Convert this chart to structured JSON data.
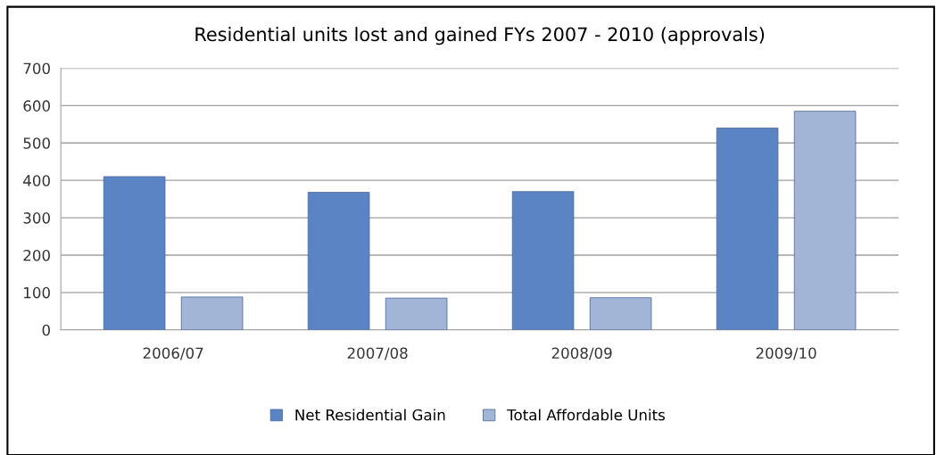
{
  "chart_data": {
    "type": "bar",
    "title": "Residential units lost and gained FYs 2007 - 2010 (approvals)",
    "categories": [
      "2006/07",
      "2007/08",
      "2008/09",
      "2009/10"
    ],
    "series": [
      {
        "name": "Net Residential Gain",
        "color": "#5b84c4",
        "values": [
          410,
          368,
          370,
          540
        ]
      },
      {
        "name": "Total Affordable Units",
        "color": "#a3b5d6",
        "values": [
          88,
          85,
          86,
          585
        ]
      }
    ],
    "ylim": [
      0,
      700
    ],
    "yticks": [
      0,
      100,
      200,
      300,
      400,
      500,
      600,
      700
    ],
    "grid": "y",
    "legend": "bottom"
  }
}
